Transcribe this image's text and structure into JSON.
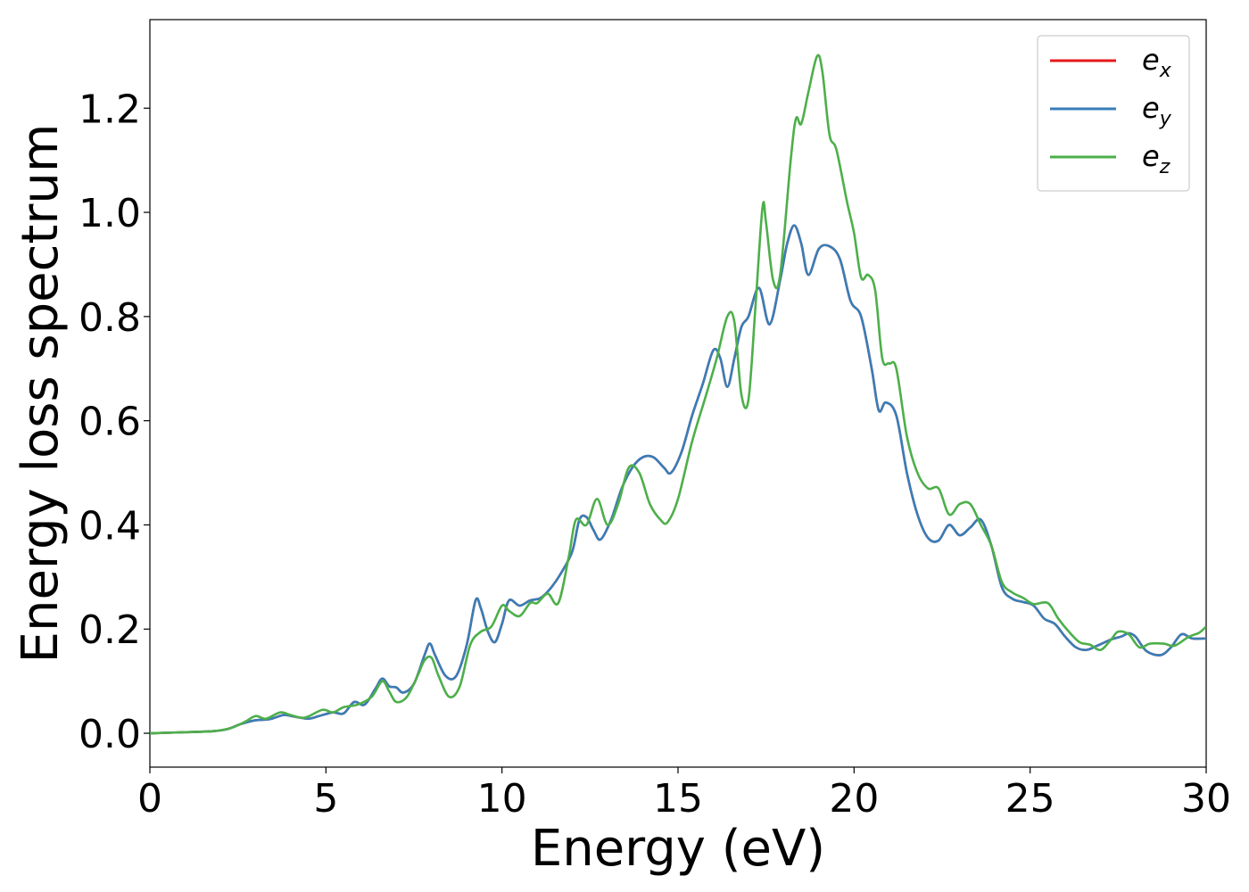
{
  "chart_data": {
    "type": "line",
    "title": "",
    "xlabel": "Energy (eV)",
    "ylabel": "Energy loss spectrum",
    "xlim": [
      0,
      30
    ],
    "ylim": [
      -0.065,
      1.37
    ],
    "xticks": [
      0,
      5,
      10,
      15,
      20,
      25,
      30
    ],
    "xtick_labels": [
      "0",
      "5",
      "10",
      "15",
      "20",
      "25",
      "30"
    ],
    "yticks": [
      0.0,
      0.2,
      0.4,
      0.6,
      0.8,
      1.0,
      1.2
    ],
    "ytick_labels": [
      "0.0",
      "0.2",
      "0.4",
      "0.6",
      "0.8",
      "1.0",
      "1.2"
    ],
    "grid": false,
    "legend_position": "top-right",
    "series": [
      {
        "name": "e_x",
        "legend_base": "e",
        "legend_sub": "x",
        "color": "#e41a1c",
        "points": [
          [
            0,
            0.0
          ],
          [
            1,
            0.002
          ],
          [
            1.8,
            0.004
          ],
          [
            2.2,
            0.008
          ],
          [
            2.6,
            0.018
          ],
          [
            3.0,
            0.025
          ],
          [
            3.4,
            0.027
          ],
          [
            3.8,
            0.035
          ],
          [
            4.1,
            0.032
          ],
          [
            4.5,
            0.028
          ],
          [
            4.8,
            0.033
          ],
          [
            5.2,
            0.04
          ],
          [
            5.5,
            0.038
          ],
          [
            5.8,
            0.06
          ],
          [
            6.1,
            0.055
          ],
          [
            6.4,
            0.085
          ],
          [
            6.6,
            0.105
          ],
          [
            6.8,
            0.09
          ],
          [
            7.0,
            0.088
          ],
          [
            7.2,
            0.078
          ],
          [
            7.5,
            0.095
          ],
          [
            7.8,
            0.15
          ],
          [
            7.95,
            0.172
          ],
          [
            8.1,
            0.15
          ],
          [
            8.4,
            0.11
          ],
          [
            8.7,
            0.11
          ],
          [
            9.0,
            0.17
          ],
          [
            9.25,
            0.255
          ],
          [
            9.4,
            0.24
          ],
          [
            9.6,
            0.195
          ],
          [
            9.8,
            0.175
          ],
          [
            10.0,
            0.21
          ],
          [
            10.2,
            0.255
          ],
          [
            10.5,
            0.245
          ],
          [
            10.8,
            0.255
          ],
          [
            11.1,
            0.26
          ],
          [
            11.4,
            0.28
          ],
          [
            11.7,
            0.31
          ],
          [
            12.0,
            0.35
          ],
          [
            12.2,
            0.41
          ],
          [
            12.4,
            0.415
          ],
          [
            12.6,
            0.39
          ],
          [
            12.8,
            0.372
          ],
          [
            13.1,
            0.41
          ],
          [
            13.4,
            0.47
          ],
          [
            13.7,
            0.51
          ],
          [
            14.0,
            0.53
          ],
          [
            14.3,
            0.53
          ],
          [
            14.6,
            0.51
          ],
          [
            14.8,
            0.5
          ],
          [
            15.1,
            0.54
          ],
          [
            15.4,
            0.61
          ],
          [
            15.7,
            0.67
          ],
          [
            16.0,
            0.735
          ],
          [
            16.2,
            0.72
          ],
          [
            16.4,
            0.665
          ],
          [
            16.6,
            0.72
          ],
          [
            16.8,
            0.78
          ],
          [
            17.0,
            0.8
          ],
          [
            17.3,
            0.855
          ],
          [
            17.6,
            0.785
          ],
          [
            17.9,
            0.87
          ],
          [
            18.1,
            0.94
          ],
          [
            18.3,
            0.975
          ],
          [
            18.5,
            0.94
          ],
          [
            18.7,
            0.88
          ],
          [
            19.0,
            0.93
          ],
          [
            19.3,
            0.935
          ],
          [
            19.6,
            0.91
          ],
          [
            19.9,
            0.83
          ],
          [
            20.2,
            0.8
          ],
          [
            20.5,
            0.7
          ],
          [
            20.7,
            0.62
          ],
          [
            20.9,
            0.635
          ],
          [
            21.2,
            0.61
          ],
          [
            21.5,
            0.5
          ],
          [
            21.8,
            0.42
          ],
          [
            22.1,
            0.375
          ],
          [
            22.4,
            0.37
          ],
          [
            22.7,
            0.4
          ],
          [
            23.0,
            0.38
          ],
          [
            23.3,
            0.395
          ],
          [
            23.6,
            0.41
          ],
          [
            23.9,
            0.36
          ],
          [
            24.2,
            0.28
          ],
          [
            24.5,
            0.258
          ],
          [
            24.8,
            0.252
          ],
          [
            25.1,
            0.245
          ],
          [
            25.4,
            0.22
          ],
          [
            25.7,
            0.21
          ],
          [
            26.0,
            0.185
          ],
          [
            26.3,
            0.165
          ],
          [
            26.6,
            0.16
          ],
          [
            26.9,
            0.168
          ],
          [
            27.3,
            0.18
          ],
          [
            27.6,
            0.186
          ],
          [
            27.8,
            0.192
          ],
          [
            28.0,
            0.185
          ],
          [
            28.3,
            0.158
          ],
          [
            28.7,
            0.15
          ],
          [
            29.0,
            0.165
          ],
          [
            29.3,
            0.19
          ],
          [
            29.6,
            0.182
          ],
          [
            30.0,
            0.182
          ]
        ]
      },
      {
        "name": "e_y",
        "legend_base": "e",
        "legend_sub": "y",
        "color": "#377eb8",
        "points": [
          [
            0,
            0.0
          ],
          [
            1,
            0.002
          ],
          [
            1.8,
            0.004
          ],
          [
            2.2,
            0.008
          ],
          [
            2.6,
            0.018
          ],
          [
            3.0,
            0.025
          ],
          [
            3.4,
            0.027
          ],
          [
            3.8,
            0.035
          ],
          [
            4.1,
            0.032
          ],
          [
            4.5,
            0.028
          ],
          [
            4.8,
            0.033
          ],
          [
            5.2,
            0.04
          ],
          [
            5.5,
            0.038
          ],
          [
            5.8,
            0.06
          ],
          [
            6.1,
            0.055
          ],
          [
            6.4,
            0.085
          ],
          [
            6.6,
            0.105
          ],
          [
            6.8,
            0.09
          ],
          [
            7.0,
            0.088
          ],
          [
            7.2,
            0.078
          ],
          [
            7.5,
            0.095
          ],
          [
            7.8,
            0.15
          ],
          [
            7.95,
            0.172
          ],
          [
            8.1,
            0.15
          ],
          [
            8.4,
            0.11
          ],
          [
            8.7,
            0.11
          ],
          [
            9.0,
            0.17
          ],
          [
            9.25,
            0.255
          ],
          [
            9.4,
            0.24
          ],
          [
            9.6,
            0.195
          ],
          [
            9.8,
            0.175
          ],
          [
            10.0,
            0.21
          ],
          [
            10.2,
            0.255
          ],
          [
            10.5,
            0.245
          ],
          [
            10.8,
            0.255
          ],
          [
            11.1,
            0.26
          ],
          [
            11.4,
            0.28
          ],
          [
            11.7,
            0.31
          ],
          [
            12.0,
            0.35
          ],
          [
            12.2,
            0.41
          ],
          [
            12.4,
            0.415
          ],
          [
            12.6,
            0.39
          ],
          [
            12.8,
            0.372
          ],
          [
            13.1,
            0.41
          ],
          [
            13.4,
            0.47
          ],
          [
            13.7,
            0.51
          ],
          [
            14.0,
            0.53
          ],
          [
            14.3,
            0.53
          ],
          [
            14.6,
            0.51
          ],
          [
            14.8,
            0.5
          ],
          [
            15.1,
            0.54
          ],
          [
            15.4,
            0.61
          ],
          [
            15.7,
            0.67
          ],
          [
            16.0,
            0.735
          ],
          [
            16.2,
            0.72
          ],
          [
            16.4,
            0.665
          ],
          [
            16.6,
            0.72
          ],
          [
            16.8,
            0.78
          ],
          [
            17.0,
            0.8
          ],
          [
            17.3,
            0.855
          ],
          [
            17.6,
            0.785
          ],
          [
            17.9,
            0.87
          ],
          [
            18.1,
            0.94
          ],
          [
            18.3,
            0.975
          ],
          [
            18.5,
            0.94
          ],
          [
            18.7,
            0.88
          ],
          [
            19.0,
            0.93
          ],
          [
            19.3,
            0.935
          ],
          [
            19.6,
            0.91
          ],
          [
            19.9,
            0.83
          ],
          [
            20.2,
            0.8
          ],
          [
            20.5,
            0.7
          ],
          [
            20.7,
            0.62
          ],
          [
            20.9,
            0.635
          ],
          [
            21.2,
            0.61
          ],
          [
            21.5,
            0.5
          ],
          [
            21.8,
            0.42
          ],
          [
            22.1,
            0.375
          ],
          [
            22.4,
            0.37
          ],
          [
            22.7,
            0.4
          ],
          [
            23.0,
            0.38
          ],
          [
            23.3,
            0.395
          ],
          [
            23.6,
            0.41
          ],
          [
            23.9,
            0.36
          ],
          [
            24.2,
            0.28
          ],
          [
            24.5,
            0.258
          ],
          [
            24.8,
            0.252
          ],
          [
            25.1,
            0.245
          ],
          [
            25.4,
            0.22
          ],
          [
            25.7,
            0.21
          ],
          [
            26.0,
            0.185
          ],
          [
            26.3,
            0.165
          ],
          [
            26.6,
            0.16
          ],
          [
            26.9,
            0.168
          ],
          [
            27.3,
            0.18
          ],
          [
            27.6,
            0.186
          ],
          [
            27.8,
            0.192
          ],
          [
            28.0,
            0.185
          ],
          [
            28.3,
            0.158
          ],
          [
            28.7,
            0.15
          ],
          [
            29.0,
            0.165
          ],
          [
            29.3,
            0.19
          ],
          [
            29.6,
            0.182
          ],
          [
            30.0,
            0.182
          ]
        ]
      },
      {
        "name": "e_z",
        "legend_base": "e",
        "legend_sub": "z",
        "color": "#4daf4a",
        "points": [
          [
            0,
            0.0
          ],
          [
            1,
            0.002
          ],
          [
            1.8,
            0.004
          ],
          [
            2.3,
            0.01
          ],
          [
            2.7,
            0.022
          ],
          [
            3.0,
            0.033
          ],
          [
            3.3,
            0.028
          ],
          [
            3.7,
            0.04
          ],
          [
            4.0,
            0.035
          ],
          [
            4.4,
            0.03
          ],
          [
            4.9,
            0.045
          ],
          [
            5.2,
            0.04
          ],
          [
            5.5,
            0.05
          ],
          [
            5.9,
            0.055
          ],
          [
            6.3,
            0.07
          ],
          [
            6.6,
            0.1
          ],
          [
            6.8,
            0.08
          ],
          [
            7.0,
            0.06
          ],
          [
            7.3,
            0.07
          ],
          [
            7.6,
            0.11
          ],
          [
            7.8,
            0.14
          ],
          [
            8.0,
            0.145
          ],
          [
            8.2,
            0.11
          ],
          [
            8.5,
            0.07
          ],
          [
            8.8,
            0.09
          ],
          [
            9.1,
            0.17
          ],
          [
            9.4,
            0.195
          ],
          [
            9.7,
            0.205
          ],
          [
            10.0,
            0.245
          ],
          [
            10.2,
            0.235
          ],
          [
            10.5,
            0.225
          ],
          [
            10.8,
            0.25
          ],
          [
            11.0,
            0.25
          ],
          [
            11.3,
            0.268
          ],
          [
            11.6,
            0.25
          ],
          [
            11.9,
            0.34
          ],
          [
            12.1,
            0.41
          ],
          [
            12.4,
            0.4
          ],
          [
            12.7,
            0.45
          ],
          [
            13.0,
            0.4
          ],
          [
            13.3,
            0.44
          ],
          [
            13.6,
            0.51
          ],
          [
            13.9,
            0.5
          ],
          [
            14.2,
            0.44
          ],
          [
            14.5,
            0.41
          ],
          [
            14.7,
            0.405
          ],
          [
            15.0,
            0.45
          ],
          [
            15.4,
            0.56
          ],
          [
            15.8,
            0.65
          ],
          [
            16.1,
            0.72
          ],
          [
            16.4,
            0.8
          ],
          [
            16.6,
            0.79
          ],
          [
            16.8,
            0.65
          ],
          [
            17.0,
            0.64
          ],
          [
            17.2,
            0.82
          ],
          [
            17.4,
            1.01
          ],
          [
            17.5,
            0.98
          ],
          [
            17.7,
            0.87
          ],
          [
            17.9,
            0.88
          ],
          [
            18.2,
            1.1
          ],
          [
            18.35,
            1.18
          ],
          [
            18.5,
            1.17
          ],
          [
            18.7,
            1.23
          ],
          [
            18.95,
            1.3
          ],
          [
            19.1,
            1.27
          ],
          [
            19.3,
            1.15
          ],
          [
            19.5,
            1.12
          ],
          [
            19.8,
            1.02
          ],
          [
            20.0,
            0.96
          ],
          [
            20.2,
            0.875
          ],
          [
            20.4,
            0.88
          ],
          [
            20.6,
            0.85
          ],
          [
            20.8,
            0.72
          ],
          [
            21.0,
            0.71
          ],
          [
            21.2,
            0.7
          ],
          [
            21.5,
            0.57
          ],
          [
            21.8,
            0.5
          ],
          [
            22.1,
            0.47
          ],
          [
            22.4,
            0.47
          ],
          [
            22.7,
            0.42
          ],
          [
            23.0,
            0.44
          ],
          [
            23.3,
            0.44
          ],
          [
            23.6,
            0.4
          ],
          [
            23.9,
            0.36
          ],
          [
            24.2,
            0.29
          ],
          [
            24.5,
            0.27
          ],
          [
            24.8,
            0.26
          ],
          [
            25.1,
            0.248
          ],
          [
            25.5,
            0.25
          ],
          [
            25.8,
            0.22
          ],
          [
            26.1,
            0.195
          ],
          [
            26.4,
            0.175
          ],
          [
            26.7,
            0.17
          ],
          [
            27.0,
            0.16
          ],
          [
            27.3,
            0.18
          ],
          [
            27.5,
            0.195
          ],
          [
            27.8,
            0.19
          ],
          [
            28.1,
            0.165
          ],
          [
            28.4,
            0.172
          ],
          [
            28.8,
            0.172
          ],
          [
            29.1,
            0.168
          ],
          [
            29.5,
            0.185
          ],
          [
            29.8,
            0.193
          ],
          [
            30.0,
            0.205
          ]
        ]
      }
    ]
  }
}
